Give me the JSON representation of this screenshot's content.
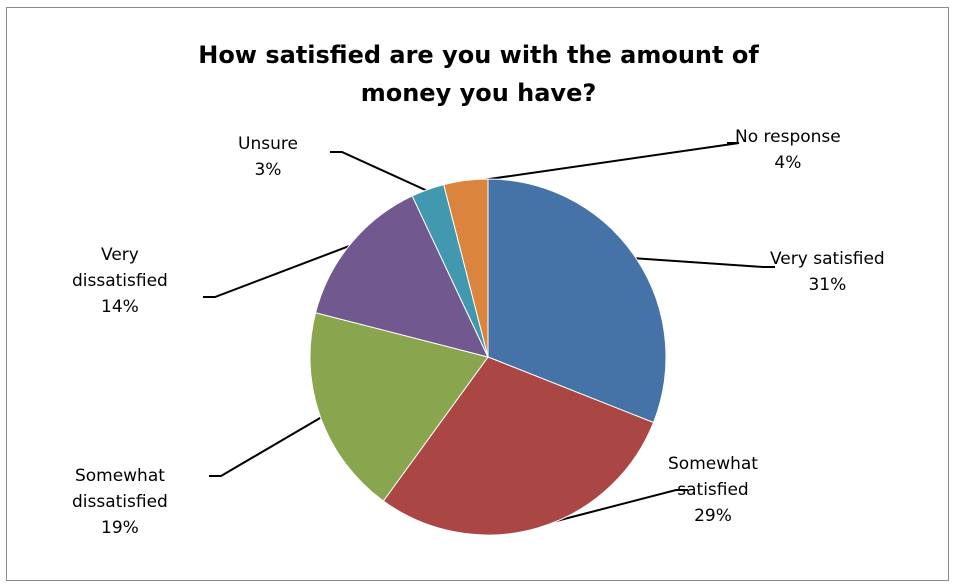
{
  "chart_data": {
    "type": "pie",
    "title": "How satisfied are you with the amount of money you have?",
    "title_lines": [
      "How satisfied are you with the amount of",
      "money you have?"
    ],
    "data_labels": "category and percentage, with leader lines",
    "start_angle": "12 o'clock, clockwise",
    "slices": [
      {
        "label": "Very satisfied",
        "label_lines": [
          "Very satisfied"
        ],
        "value": 31,
        "display": "31%",
        "color": "#4572A7"
      },
      {
        "label": "Somewhat satisfied",
        "label_lines": [
          "Somewhat",
          "satisfied"
        ],
        "value": 29,
        "display": "29%",
        "color": "#AA4643"
      },
      {
        "label": "Somewhat dissatisfied",
        "label_lines": [
          "Somewhat",
          "dissatisfied"
        ],
        "value": 19,
        "display": "19%",
        "color": "#89A54E"
      },
      {
        "label": "Very dissatisfied",
        "label_lines": [
          "Very",
          "dissatisfied"
        ],
        "value": 14,
        "display": "14%",
        "color": "#71588F"
      },
      {
        "label": "Unsure",
        "label_lines": [
          "Unsure"
        ],
        "value": 3,
        "display": "3%",
        "color": "#4198AF"
      },
      {
        "label": "No response",
        "label_lines": [
          "No response"
        ],
        "value": 4,
        "display": "4%",
        "color": "#DB843D"
      }
    ]
  }
}
